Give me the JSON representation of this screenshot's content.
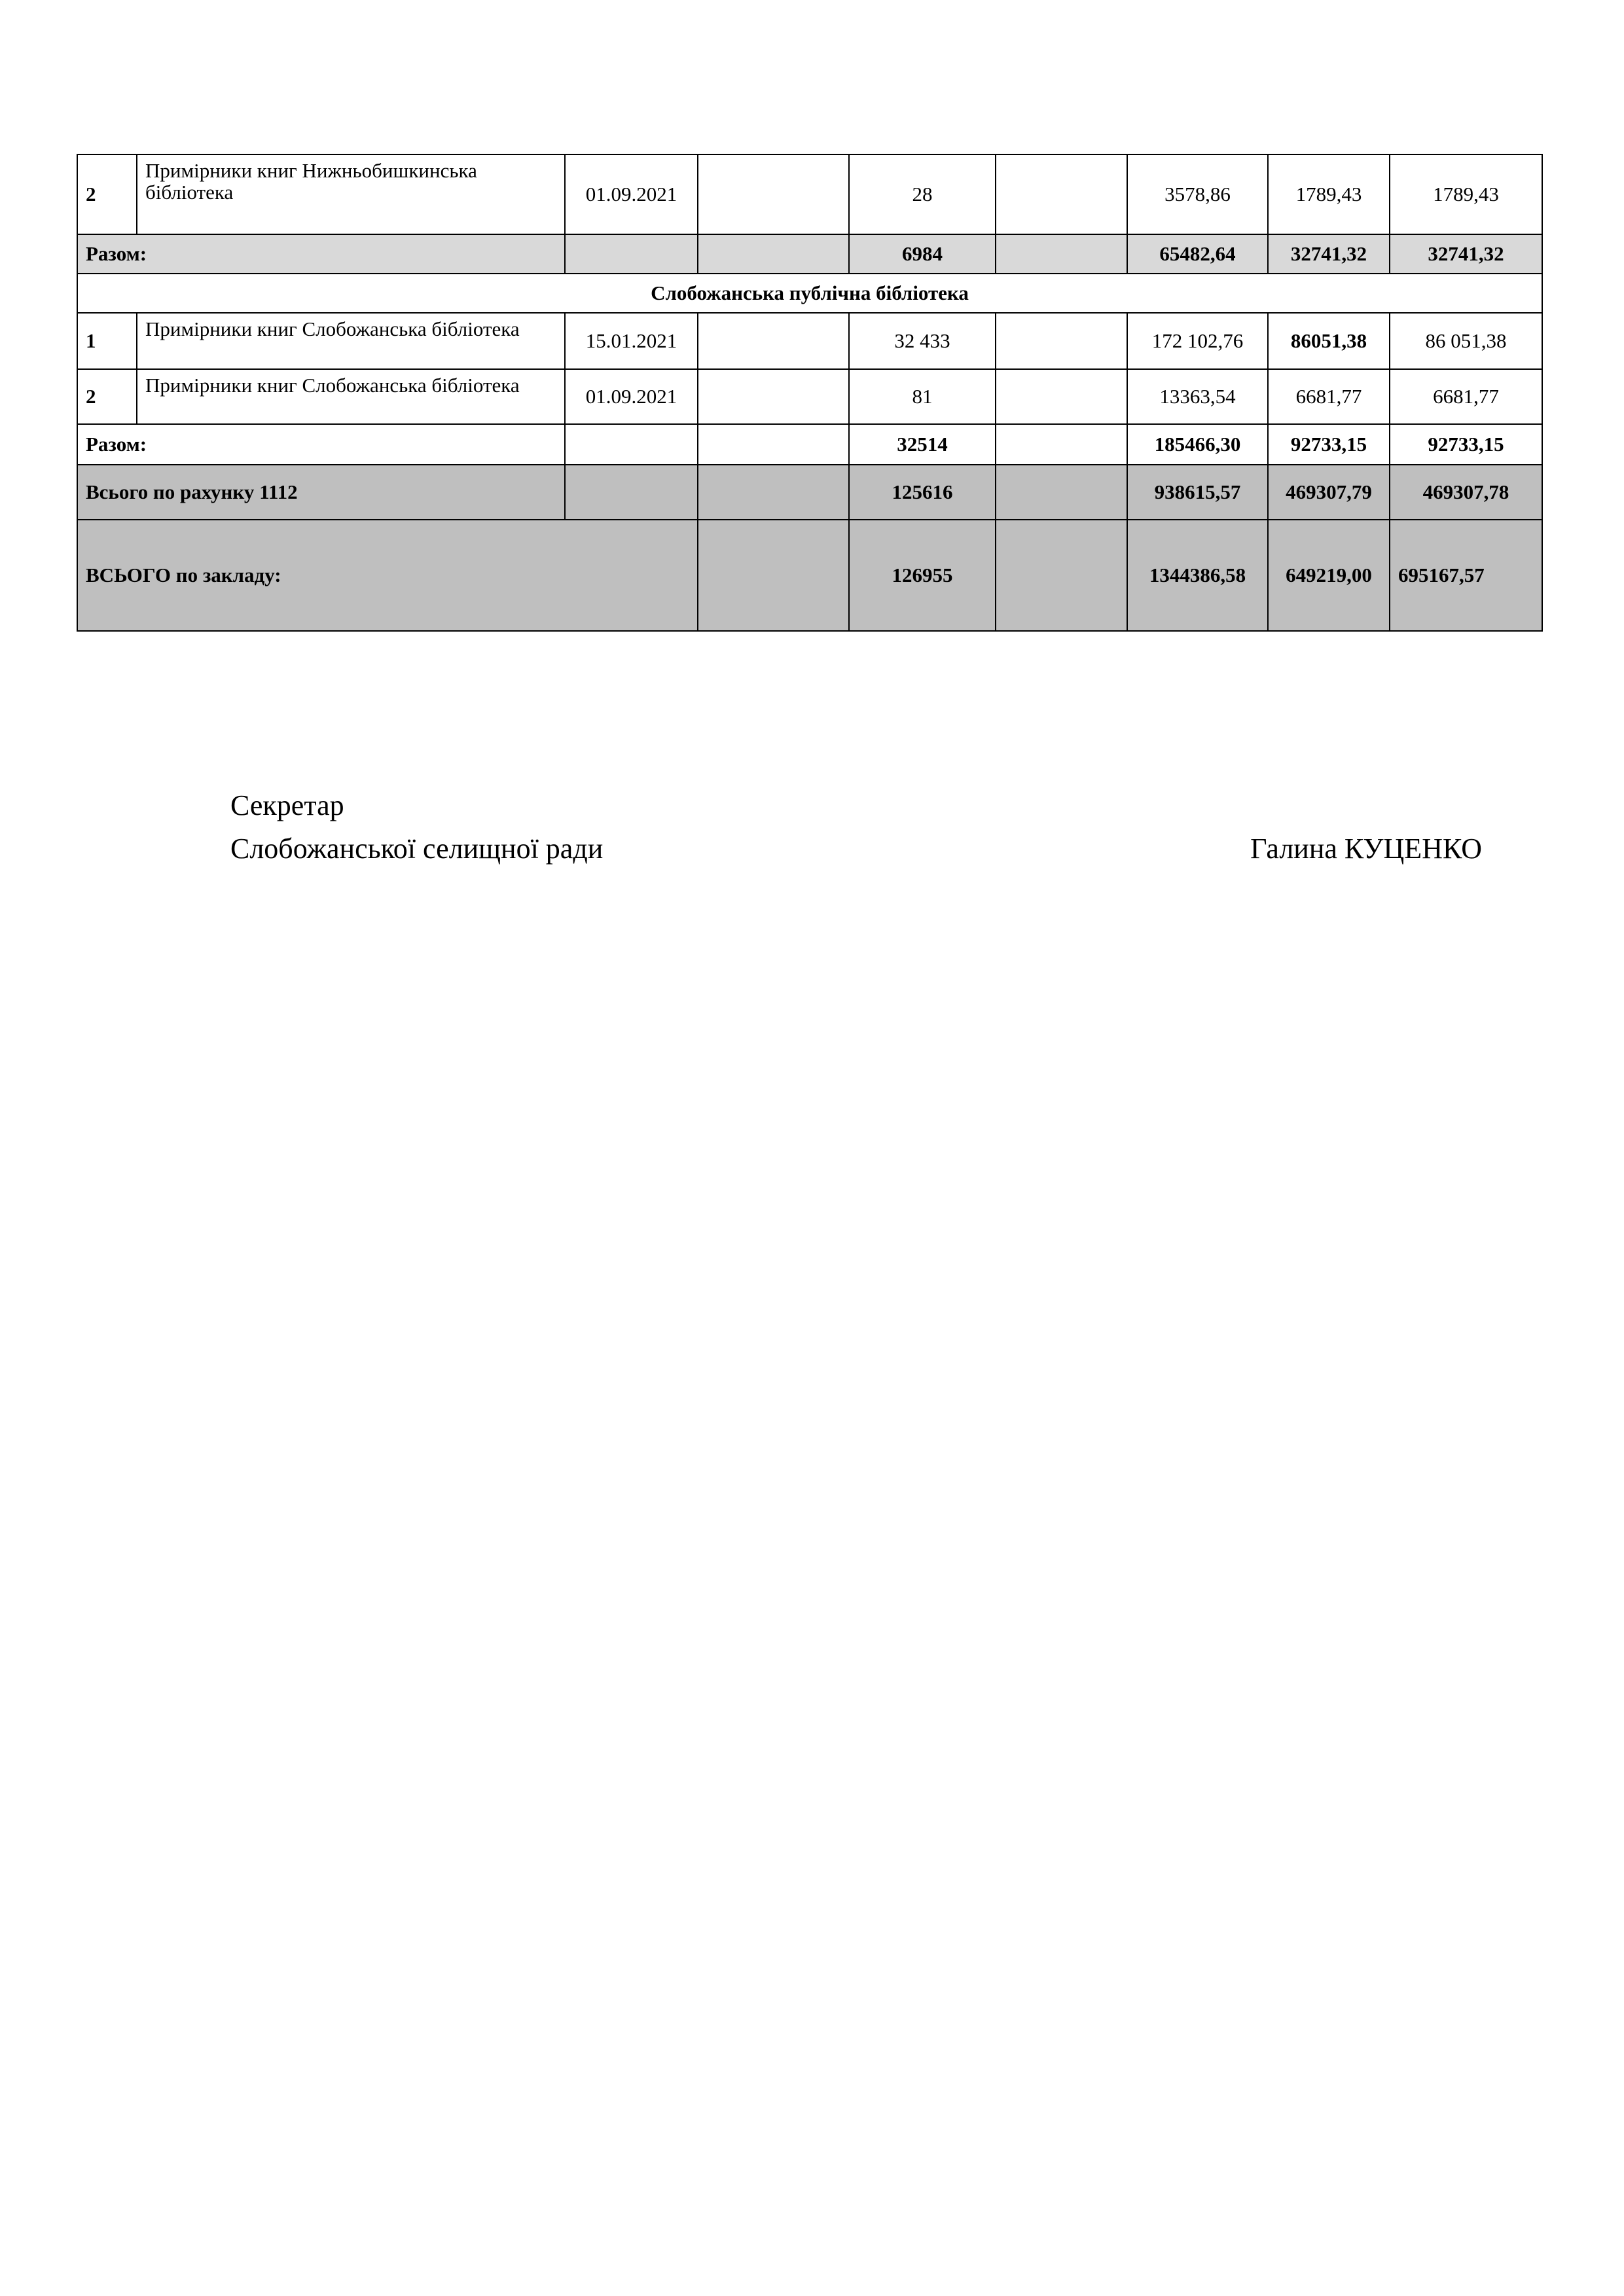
{
  "table": {
    "rows": [
      {
        "num": "2",
        "name": "Примірники книг  Нижньобишкинська бібліотека",
        "date": "01.09.2021",
        "qty": "28",
        "sum": "3578,86",
        "col7": "1789,43",
        "col8": "1789,43"
      },
      {
        "label": "Разом:",
        "qty": "6984",
        "sum": "65482,64",
        "col7": "32741,32",
        "col8": "32741,32"
      },
      {
        "section": "Слобожанська публічна бібліотека"
      },
      {
        "num": "1",
        "name": "Примірники книг Слобожанська бібліотека",
        "date": "15.01.2021",
        "qty": "32 433",
        "sum": "172 102,76",
        "col7": "86051,38",
        "col8": "86 051,38"
      },
      {
        "num": "2",
        "name": "Примірники книг Слобожанська бібліотека",
        "date": "01.09.2021",
        "qty": "81",
        "sum": "13363,54",
        "col7": "6681,77",
        "col8": "6681,77"
      },
      {
        "label": "Разом:",
        "qty": "32514",
        "sum": "185466,30",
        "col7": "92733,15",
        "col8": "92733,15"
      },
      {
        "label": "Всього по рахунку 1112",
        "qty": "125616",
        "sum": "938615,57",
        "col7": "469307,79",
        "col8": "469307,78"
      },
      {
        "label": "ВСЬОГО  по закладу:",
        "qty": "126955",
        "sum": "1344386,58",
        "col7": "649219,00",
        "col8": "695167,57"
      }
    ]
  },
  "signature": {
    "title_line1": "Секретар",
    "title_line2": "Слобожанської селищної ради",
    "name": "Галина КУЦЕНКО"
  }
}
